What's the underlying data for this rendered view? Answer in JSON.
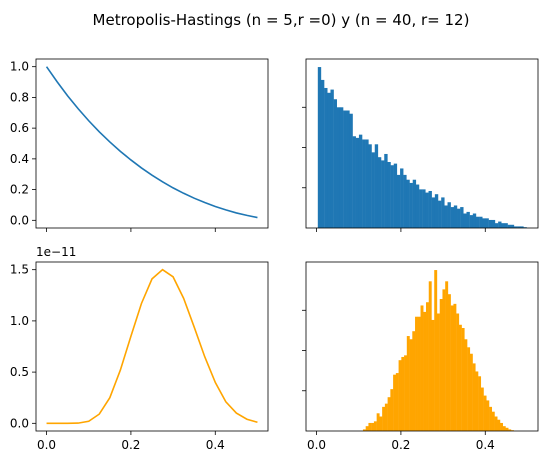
{
  "figure": {
    "suptitle": "Metropolis-Hastings (n = 5,r =0) y (n = 40, r= 12)"
  },
  "chart_data": [
    {
      "type": "line",
      "title": "",
      "xlabel": "",
      "ylabel": "",
      "xlim": [
        -0.025,
        0.525
      ],
      "ylim": [
        -0.05,
        1.05
      ],
      "yticks": [
        0.0,
        0.2,
        0.4,
        0.6,
        0.8,
        1.0
      ],
      "ytick_labels": [
        "0.0",
        "0.2",
        "0.4",
        "0.6",
        "0.8",
        "1.0"
      ],
      "xticks": [
        0.0,
        0.2,
        0.4
      ],
      "xtick_labels": [],
      "color": "#1f77b4",
      "series": [
        {
          "x": [
            0.0,
            0.025,
            0.05,
            0.075,
            0.1,
            0.125,
            0.15,
            0.175,
            0.2,
            0.225,
            0.25,
            0.275,
            0.3,
            0.325,
            0.35,
            0.375,
            0.4,
            0.425,
            0.45,
            0.475,
            0.5
          ],
          "y": [
            1.0,
            0.902,
            0.81,
            0.726,
            0.648,
            0.576,
            0.51,
            0.449,
            0.393,
            0.341,
            0.294,
            0.251,
            0.211,
            0.176,
            0.144,
            0.116,
            0.09,
            0.068,
            0.048,
            0.032,
            0.018
          ]
        }
      ]
    },
    {
      "type": "bar",
      "title": "",
      "xlabel": "",
      "ylabel": "",
      "xlim": [
        -0.025,
        0.525
      ],
      "ylim": [
        0,
        1.05
      ],
      "xticks": [
        0.0,
        0.2,
        0.4
      ],
      "xtick_labels": [],
      "yticks": [
        0.25,
        0.5,
        0.75
      ],
      "ytick_labels": [],
      "color": "#1f77b4",
      "bin_start": 0.003,
      "bin_width": 0.0075,
      "values": [
        1.0,
        0.92,
        0.87,
        0.84,
        0.86,
        0.8,
        0.75,
        0.75,
        0.73,
        0.73,
        0.71,
        0.57,
        0.56,
        0.58,
        0.55,
        0.55,
        0.52,
        0.47,
        0.52,
        0.44,
        0.42,
        0.46,
        0.41,
        0.39,
        0.4,
        0.33,
        0.37,
        0.33,
        0.3,
        0.28,
        0.3,
        0.27,
        0.24,
        0.24,
        0.22,
        0.23,
        0.19,
        0.21,
        0.17,
        0.19,
        0.14,
        0.16,
        0.13,
        0.14,
        0.12,
        0.13,
        0.09,
        0.1,
        0.08,
        0.09,
        0.07,
        0.07,
        0.06,
        0.06,
        0.05,
        0.05,
        0.03,
        0.04,
        0.03,
        0.03,
        0.02,
        0.02,
        0.01,
        0.01,
        0.01,
        0.005
      ]
    },
    {
      "type": "line",
      "title": "",
      "xlabel": "",
      "ylabel": "",
      "offset_label": "1e−11",
      "xlim": [
        -0.025,
        0.525
      ],
      "ylim": [
        -0.075,
        1.575
      ],
      "yticks": [
        0.0,
        0.5,
        1.0,
        1.5
      ],
      "ytick_labels": [
        "0.0",
        "0.5",
        "1.0",
        "1.5"
      ],
      "xticks": [
        0.0,
        0.2,
        0.4
      ],
      "xtick_labels": [
        "0.0",
        "0.2",
        "0.4"
      ],
      "color": "#ffa500",
      "series": [
        {
          "x": [
            0.0,
            0.025,
            0.05,
            0.075,
            0.1,
            0.125,
            0.15,
            0.175,
            0.2,
            0.225,
            0.25,
            0.275,
            0.3,
            0.325,
            0.35,
            0.375,
            0.4,
            0.425,
            0.45,
            0.475,
            0.5
          ],
          "y": [
            0.0,
            0.0,
            0.0,
            0.002,
            0.02,
            0.09,
            0.25,
            0.52,
            0.85,
            1.17,
            1.41,
            1.5,
            1.43,
            1.22,
            0.94,
            0.65,
            0.4,
            0.21,
            0.1,
            0.04,
            0.01
          ]
        }
      ]
    },
    {
      "type": "bar",
      "title": "",
      "xlabel": "",
      "ylabel": "",
      "xlim": [
        -0.025,
        0.525
      ],
      "ylim": [
        0,
        1.05
      ],
      "xticks": [
        0.0,
        0.2,
        0.4
      ],
      "xtick_labels": [
        "0.0",
        "0.2",
        "0.4"
      ],
      "yticks": [
        0.25,
        0.5,
        0.75
      ],
      "ytick_labels": [],
      "color": "#ffa500",
      "bin_start": 0.11,
      "bin_width": 0.0065,
      "values": [
        0.01,
        0.03,
        0.05,
        0.05,
        0.06,
        0.11,
        0.09,
        0.15,
        0.17,
        0.21,
        0.26,
        0.35,
        0.36,
        0.44,
        0.46,
        0.47,
        0.59,
        0.57,
        0.62,
        0.71,
        0.71,
        0.78,
        0.74,
        0.8,
        0.93,
        0.69,
        1.0,
        0.73,
        0.82,
        0.88,
        0.93,
        0.85,
        0.78,
        0.79,
        0.73,
        0.66,
        0.64,
        0.57,
        0.52,
        0.48,
        0.42,
        0.37,
        0.34,
        0.27,
        0.22,
        0.19,
        0.15,
        0.12,
        0.09,
        0.07,
        0.05,
        0.03,
        0.02,
        0.01,
        0.005
      ]
    }
  ]
}
